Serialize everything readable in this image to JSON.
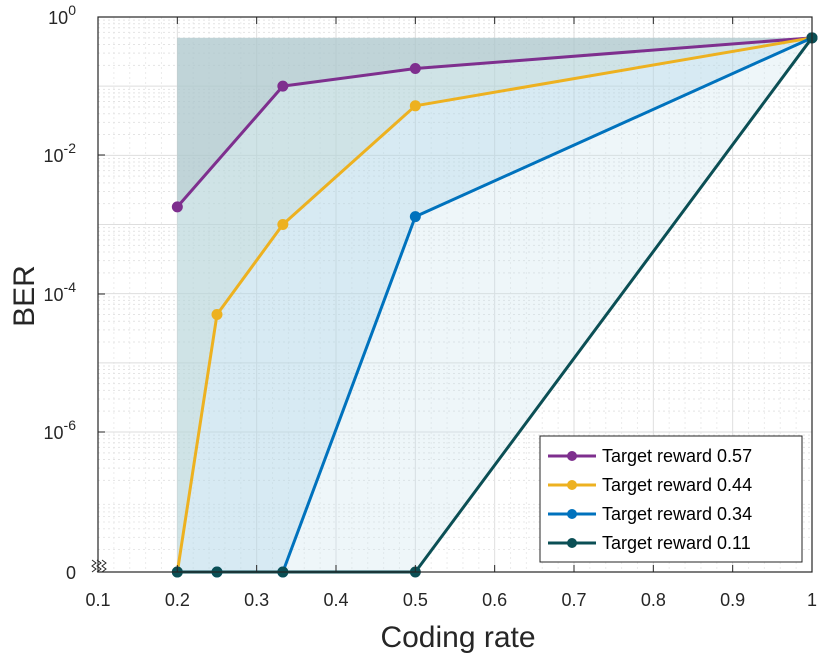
{
  "chart_data": {
    "type": "line",
    "title": "",
    "xlabel": "Coding rate",
    "ylabel": "BER",
    "xlim": [
      0.1,
      1
    ],
    "x_ticks": [
      "0.1",
      "0.2",
      "0.3",
      "0.4",
      "0.5",
      "0.6",
      "0.7",
      "0.8",
      "0.9",
      "1"
    ],
    "y_scale": "log with zero stub",
    "y_ticks": [
      {
        "base": "0",
        "exp": ""
      },
      {
        "base": "10",
        "exp": "-6"
      },
      {
        "base": "10",
        "exp": "-4"
      },
      {
        "base": "10",
        "exp": "-2"
      },
      {
        "base": "10",
        "exp": "0"
      }
    ],
    "grid": true,
    "legend_position": "bottom-right",
    "series": [
      {
        "name": "Target reward 0.57",
        "color": "#7E2F8E",
        "x": [
          0.2,
          0.333,
          0.5,
          1.0
        ],
        "y": [
          0.0018,
          0.1,
          0.18,
          0.5
        ]
      },
      {
        "name": "Target reward 0.44",
        "color": "#EDB120",
        "x": [
          0.2,
          0.25,
          0.333,
          0.5,
          1.0
        ],
        "y": [
          0,
          5e-05,
          0.001,
          0.052,
          0.5
        ]
      },
      {
        "name": "Target reward 0.34",
        "color": "#0072BD",
        "x": [
          0.2,
          0.25,
          0.333,
          0.5,
          1.0
        ],
        "y": [
          0,
          0,
          0,
          0.0013,
          0.5
        ]
      },
      {
        "name": "Target reward 0.11",
        "color": "#0B4F55",
        "x": [
          0.2,
          0.25,
          0.333,
          0.5,
          1.0
        ],
        "y": [
          0,
          0,
          0,
          0,
          0.5
        ]
      }
    ]
  }
}
